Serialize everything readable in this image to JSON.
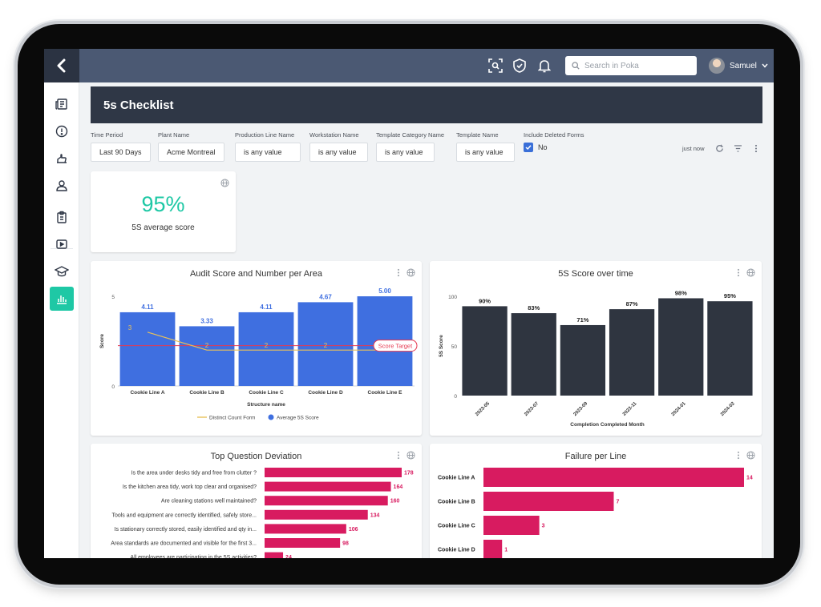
{
  "topbar": {
    "search_placeholder": "Search in Poka",
    "user_name": "Samuel"
  },
  "page": {
    "title": "5s Checklist"
  },
  "filters": [
    {
      "label": "Time Period",
      "value": "Last 90 Days"
    },
    {
      "label": "Plant Name",
      "value": "Acme Montreal"
    },
    {
      "label": "Production Line Name",
      "value": "is any value"
    },
    {
      "label": "Workstation Name",
      "value": "is any value"
    },
    {
      "label": "Template Category Name",
      "value": "is any value"
    },
    {
      "label": "Template Name",
      "value": "is any value"
    }
  ],
  "include_deleted": {
    "label": "Include Deleted Forms",
    "value": "No"
  },
  "status": {
    "updated": "just now"
  },
  "kpi": {
    "value": "95%",
    "label": "5S average score"
  },
  "colors": {
    "accent": "#1ec8a5",
    "bar_blue": "#3f6fe0",
    "bar_dark": "#2f3540",
    "bar_pink": "#d81b60",
    "target": "#e53950"
  },
  "chart_data": [
    {
      "type": "bar",
      "title": "Audit Score and Number per Area",
      "categories": [
        "Cookie Line A",
        "Cookie Line B",
        "Cookie Line C",
        "Cookie Line D",
        "Cookie Line E"
      ],
      "series": [
        {
          "name": "Average 5S Score",
          "type": "bar",
          "values": [
            4.11,
            3.33,
            4.11,
            4.67,
            5.0
          ],
          "labels": [
            "4.11",
            "3.33",
            "4.11",
            "4.67",
            "5.00"
          ]
        },
        {
          "name": "Distinct Count Form",
          "type": "line",
          "values": [
            3,
            2,
            2,
            2,
            2
          ],
          "labels": [
            "3",
            "2",
            "2",
            "2",
            "2"
          ]
        }
      ],
      "reference_line": {
        "label": "Score Target",
        "value": 2.25
      },
      "xlabel": "Structure name",
      "ylabel": "Score",
      "yticks": [
        "0",
        "5"
      ],
      "ylim": [
        0,
        5
      ]
    },
    {
      "type": "bar",
      "title": "5S Score over time",
      "categories": [
        "2023-05",
        "2023-07",
        "2023-09",
        "2023-11",
        "2024-01",
        "2024-02"
      ],
      "values": [
        90,
        83,
        71,
        87,
        98,
        95
      ],
      "labels": [
        "90%",
        "83%",
        "71%",
        "87%",
        "98%",
        "95%"
      ],
      "xlabel": "Completion Completed Month",
      "ylabel": "5S Score",
      "yticks": [
        "0",
        "50",
        "100"
      ],
      "ylim": [
        0,
        100
      ]
    },
    {
      "type": "bar",
      "orientation": "horizontal",
      "title": "Top Question Deviation",
      "categories": [
        "Is the area under desks tidy and free from clutter ?",
        "Is the kitchen area tidy, work top clear and organised?",
        "Are cleaning stations well maintained?",
        "Tools and equipment are correctly identified, safely store...",
        "Is stationary correctly stored, easily identified and qty in...",
        "Area standards are documented and visible for the first 3...",
        "All employees are participating in the 5S activities?"
      ],
      "values": [
        178,
        164,
        160,
        134,
        106,
        98,
        24
      ],
      "labels": [
        "178",
        "164",
        "160",
        "134",
        "106",
        "98",
        "24"
      ],
      "xlim": [
        0,
        178
      ]
    },
    {
      "type": "bar",
      "orientation": "horizontal",
      "title": "Failure per Line",
      "categories": [
        "Cookie Line A",
        "Cookie Line B",
        "Cookie Line C",
        "Cookie Line D"
      ],
      "values": [
        14,
        7,
        3,
        1
      ],
      "labels": [
        "14",
        "7",
        "3",
        "1"
      ],
      "xlim": [
        0,
        14
      ]
    }
  ]
}
